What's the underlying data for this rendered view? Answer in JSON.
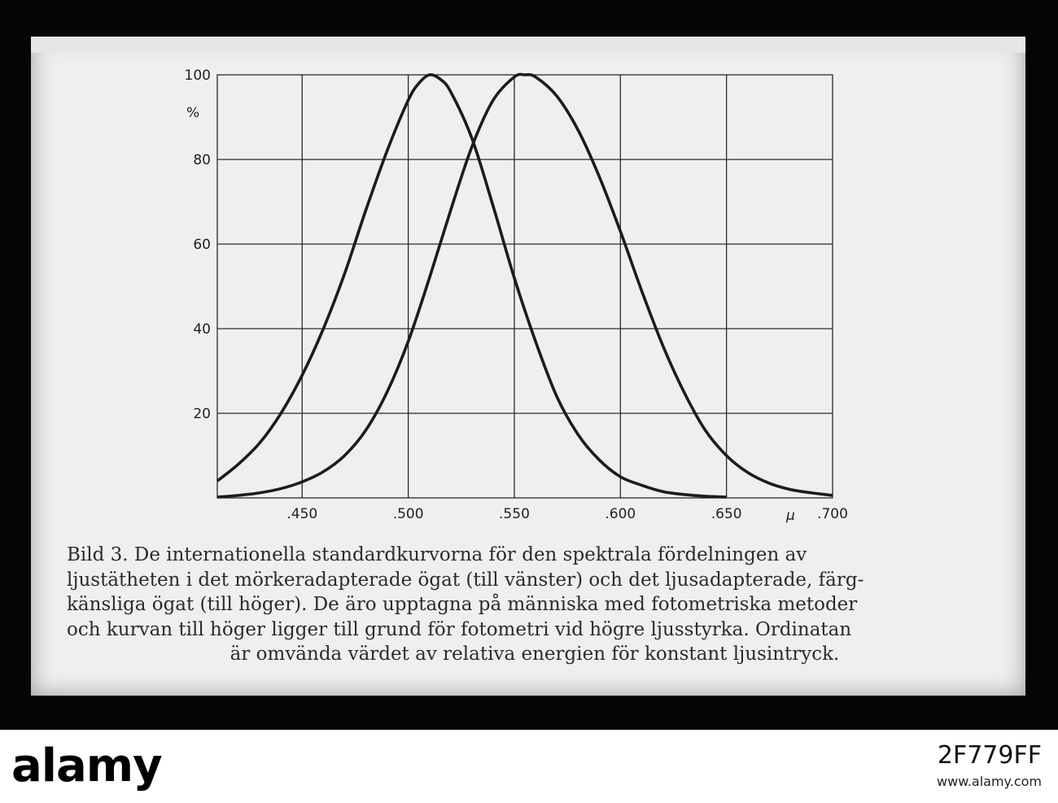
{
  "chart_data": {
    "type": "line",
    "title": "",
    "xlabel": "µ",
    "ylabel": "%",
    "x_ticks": [
      ".450",
      ".500",
      ".550",
      ".600",
      ".650",
      ".700"
    ],
    "y_ticks": [
      "20",
      "40",
      "60",
      "80",
      "100"
    ],
    "xlim": [
      0.41,
      0.7
    ],
    "ylim": [
      0,
      100
    ],
    "grid": true,
    "series": [
      {
        "x": [
          0.41,
          0.42,
          0.43,
          0.44,
          0.45,
          0.46,
          0.47,
          0.48,
          0.49,
          0.5,
          0.505,
          0.51,
          0.515,
          0.52,
          0.53,
          0.54,
          0.55,
          0.56,
          0.57,
          0.58,
          0.59,
          0.6,
          0.61,
          0.62,
          0.63,
          0.64,
          0.65
        ],
        "values": [
          4,
          8,
          13,
          20,
          29,
          40,
          53,
          68,
          82,
          94,
          98,
          100,
          99,
          96,
          85,
          69,
          52,
          37,
          24,
          15,
          9,
          5,
          3,
          1.5,
          0.8,
          0.4,
          0.2
        ]
      },
      {
        "x": [
          0.41,
          0.42,
          0.43,
          0.44,
          0.45,
          0.46,
          0.47,
          0.48,
          0.49,
          0.5,
          0.51,
          0.52,
          0.53,
          0.54,
          0.55,
          0.555,
          0.56,
          0.57,
          0.58,
          0.59,
          0.6,
          0.61,
          0.62,
          0.63,
          0.64,
          0.65,
          0.66,
          0.67,
          0.68,
          0.69,
          0.7
        ],
        "values": [
          0.2,
          0.6,
          1.2,
          2.2,
          3.8,
          6.2,
          10,
          16,
          25,
          37,
          52,
          68,
          83,
          94,
          99.5,
          100,
          99.5,
          95,
          87,
          76,
          63,
          49,
          36,
          25,
          16,
          10,
          6,
          3.5,
          2,
          1.2,
          0.6
        ]
      }
    ]
  },
  "caption": {
    "line1": "Bild 3.  De internationella standardkurvorna för den spektrala fördelningen av",
    "line2": "ljustätheten i det mörkeradapterade ögat (till vänster) och det ljusadapterade, färg-",
    "line3": "känsliga ögat (till höger).  De äro upptagna på människa med fotometriska metoder",
    "line4": "och kurvan till höger ligger till grund för fotometri vid högre ljusstyrka. Ordinatan",
    "line5": "är omvända värdet av relativa energien för konstant ljusintryck."
  },
  "watermark": {
    "logo": "alamy",
    "image_id": "2F779FF",
    "url": "www.alamy.com"
  }
}
